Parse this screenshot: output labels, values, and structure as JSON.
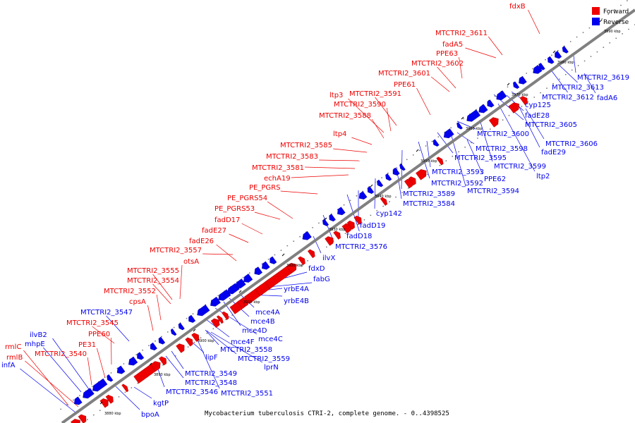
{
  "caption": "Mycobacterium tuberculosis CTRI-2, complete genome. - 0..4398525",
  "legend": {
    "forward_label": "Forward",
    "reverse_label": "Reverse",
    "forward_color": "#ee0000",
    "reverse_color": "#0000ee"
  },
  "backbone_color": "#808080",
  "kbp_ticks": [
    "3880 kbp",
    "3890 kbp",
    "3900 kbp",
    "3910 kbp",
    "3920 kbp",
    "3930 kbp",
    "3940 kbp",
    "3950 kbp",
    "3960 kbp",
    "3970 kbp",
    "3980 kbp",
    "3990 kbp"
  ],
  "forward_genes": [
    "fdxB",
    "MTCTRI2_3611",
    "fadA5",
    "PPE63",
    "MTCTRI2_3602",
    "MTCTRI2_3601",
    "PPE61",
    "ltp3",
    "MTCTRI2_3591",
    "MTCTRI2_3590",
    "MTCTRI2_3588",
    "ltp4",
    "MTCTRI2_3585",
    "MTCTRI2_3583",
    "MTCTRI2_3581",
    "echA19",
    "PE_PGRS",
    "PE_PGRS54",
    "PE_PGRS53",
    "fadD17",
    "fadE27",
    "fadE26",
    "MTCTRI2_3557",
    "otsA",
    "MTCTRI2_3555",
    "MTCTRI2_3554",
    "MTCTRI2_3552",
    "cpsA",
    "MTCTRI2_3545",
    "PPE60",
    "PE31",
    "MTCTRI2_3540",
    "rmlC",
    "rmlB"
  ],
  "reverse_genes": [
    "MTCTRI2_3619",
    "MTCTRI2_3613",
    "MTCTRI2_3612",
    "fadA6",
    "cyp125",
    "fadE28",
    "MTCTRI2_3605",
    "MTCTRI2_3600",
    "MTCTRI2_3606",
    "fadE29",
    "MTCTRI2_3598",
    "MTCTRI2_3595",
    "MTCTRI2_3599",
    "MTCTRI2_3593",
    "ltp2",
    "PPE62",
    "MTCTRI2_3592",
    "MTCTRI2_3594",
    "MTCTRI2_3589",
    "MTCTRI2_3584",
    "cyp142",
    "fadD19",
    "fadD18",
    "MTCTRI2_3576",
    "ilvX",
    "fdxD",
    "fabG",
    "yrbE4A",
    "yrbE4B",
    "mce4A",
    "mce4B",
    "mce4D",
    "mce4C",
    "mce4F",
    "MTCTRI2_3558",
    "MTCTRI2_3559",
    "lprN",
    "lipF",
    "MTCTRI2_3549",
    "MTCTRI2_3548",
    "MTCTRI2_3546",
    "MTCTRI2_3551",
    "kgtP",
    "bpoA",
    "MTCTRI2_3547",
    "ilvB2",
    "mhpE",
    "infA"
  ]
}
